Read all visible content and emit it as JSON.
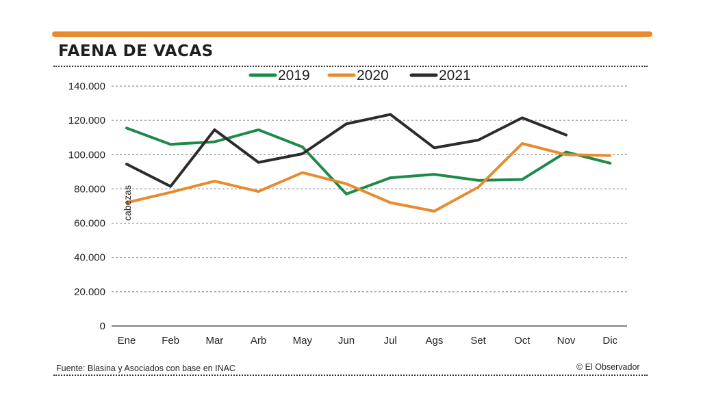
{
  "header": {
    "title": "FAENA DE VACAS"
  },
  "footer": {
    "source": "Fuente: Blasina y Asociados con base en INAC",
    "credit": "© El Observador"
  },
  "colors": {
    "accent_bar": "#e88a2e",
    "series_2019": "#1e8a4a",
    "series_2020": "#e88a2e",
    "series_2021": "#2b2b2b"
  },
  "chart_data": {
    "type": "line",
    "title": "FAENA DE VACAS",
    "ylabel": "cabezas",
    "xlabel": "",
    "categories": [
      "Ene",
      "Feb",
      "Mar",
      "Arb",
      "May",
      "Jun",
      "Jul",
      "Ags",
      "Set",
      "Oct",
      "Nov",
      "Dic"
    ],
    "ylim": [
      0,
      140000
    ],
    "yticks": [
      0,
      20000,
      40000,
      60000,
      80000,
      100000,
      120000,
      140000
    ],
    "ytick_labels": [
      "0",
      "20.000",
      "40.000",
      "60.000",
      "80.000",
      "100.000",
      "120.000",
      "140.000"
    ],
    "grid": true,
    "legend_position": "top-center",
    "series": [
      {
        "name": "2019",
        "color": "#1e8a4a",
        "values": [
          115500,
          106000,
          107500,
          114500,
          104500,
          77000,
          86500,
          88500,
          85000,
          85500,
          101500,
          95000
        ]
      },
      {
        "name": "2020",
        "color": "#e88a2e",
        "values": [
          72000,
          78000,
          84500,
          78500,
          89500,
          83000,
          72000,
          67000,
          81000,
          106500,
          100000,
          99500
        ]
      },
      {
        "name": "2021",
        "color": "#2b2b2b",
        "values": [
          94500,
          81500,
          114500,
          95500,
          100500,
          118000,
          123500,
          104000,
          108500,
          121500,
          111500,
          null
        ]
      }
    ]
  }
}
